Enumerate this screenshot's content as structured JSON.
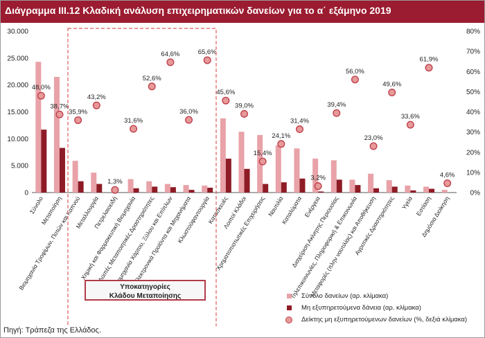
{
  "title": "Διάγραμμα ΙΙΙ.12 Κλαδική ανάλυση επιχειρηματικών δανείων για το α΄ εξάμηνο 2019",
  "source": "Πηγή: Τράπεζα της Ελλάδος.",
  "subcategory_box": {
    "line1": "Υποκατηγορίες",
    "line2": "Κλάδου Μεταποίησης"
  },
  "colors": {
    "title_bg": "#9b1b30",
    "total_loans": "#e8a2a8",
    "npl": "#8e1c26",
    "ratio_fill": "#e69a9a",
    "ratio_stroke": "#c0404c",
    "dashed_box": "#e05a5a"
  },
  "chart_data": {
    "type": "bar",
    "categories": [
      "Σύνολο",
      "Μεταποίηση",
      "Βιομηχανία Τροφίμων, Ποτών και Καπνού",
      "Μεταλλουργία",
      "Πετρελαιοειδή",
      "Χημική και Φαρμακευτική Βιομηχανία",
      "Λοιπές Μεταποιητικές Δραστηριότητες",
      "Βιομηχανία Χάρτου, Ξύλου και Επίπλων",
      "Ηλεκτρονικά Προϊόντα και Μηχανήματα",
      "Κλωστοϋφαντουργία",
      "Κατασκευές",
      "Λοιποί Κλάδοι",
      "Χρηματοπιστωτικές Επιχειρήσεις",
      "Ναυτιλία",
      "Καταλύματα",
      "Ενέργεια",
      "Διαχείριση Ακίνητης Περιουσίας",
      "Τηλεπικοινωνίες, Πληροφορική & Επικοινωνία",
      "Μεταφορές (πλην ναυτιλίας) και Αποθήκευση",
      "Αγροτικές Δραστηριότητες",
      "Υγεία",
      "Εστίαση",
      "Δημόσια Διοίκηση"
    ],
    "series": [
      {
        "name": "Σύνολο δανείων (αρ. κλίμακα)",
        "axis": "left",
        "values": [
          24300,
          21500,
          5900,
          3700,
          0,
          2500,
          2100,
          1600,
          1400,
          1300,
          13800,
          11300,
          10700,
          8800,
          8200,
          6300,
          6000,
          2400,
          3500,
          2300,
          1300,
          1100,
          500
        ]
      },
      {
        "name": "Μη εξυπηρετούμενα δάνεια (αρ. κλίμακα)",
        "axis": "left",
        "values": [
          11700,
          8300,
          2100,
          1600,
          0,
          800,
          1100,
          1000,
          500,
          900,
          6300,
          4400,
          1600,
          1900,
          2600,
          200,
          2400,
          1400,
          800,
          1100,
          400,
          700,
          0
        ]
      },
      {
        "name": "Δείκτης μη εξυπηρετούμενων δανείων (%, δεξιά κλίμακα)",
        "axis": "right",
        "values": [
          48.0,
          38.7,
          35.9,
          43.2,
          1.3,
          31.6,
          52.6,
          64.6,
          36.0,
          65.6,
          45.6,
          39.0,
          15.4,
          24.1,
          31.4,
          3.2,
          39.4,
          56.0,
          23.0,
          49.6,
          33.6,
          61.9,
          4.6
        ],
        "labels": [
          "48,0%",
          "38,7%",
          "35,9%",
          "43,2%",
          "1,3%",
          "31,6%",
          "52,6%",
          "64,6%",
          "36,0%",
          "65,6%",
          "45,6%",
          "39,0%",
          "15,4%",
          "24,1%",
          "31,4%",
          "3,2%",
          "39,4%",
          "56,0%",
          "23,0%",
          "49,6%",
          "33,6%",
          "61,9%",
          "4,6%"
        ]
      }
    ],
    "ylim": [
      0,
      30000
    ],
    "y2lim": [
      0,
      80
    ],
    "yticks": [
      "0",
      "5.000",
      "10.000",
      "15.000",
      "20.000",
      "25.000",
      "30.000"
    ],
    "y2ticks": [
      "0%",
      "10%",
      "20%",
      "30%",
      "40%",
      "50%",
      "60%",
      "70%",
      "80%"
    ],
    "grid": false,
    "legend_position": "bottom-right"
  }
}
